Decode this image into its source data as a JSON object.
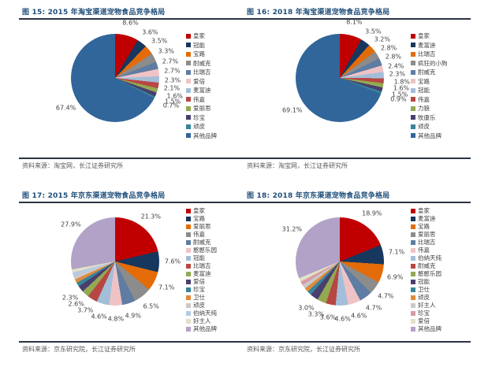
{
  "page": {
    "background": "#ffffff",
    "accent_title_color": "#1F4E79",
    "rule_color": "#2A3442"
  },
  "chart_data": [
    {
      "type": "pie",
      "title": "图 15: 2015 年淘宝渠道宠物食品竞争格局",
      "source": "资料来源：淘宝网，长江证券研究所",
      "legend_position": "right",
      "slices": [
        {
          "label": "皇家",
          "value": 8.6,
          "color": "#C00000",
          "label_visible": true
        },
        {
          "label": "冠能",
          "value": 3.6,
          "color": "#17375E",
          "label_visible": true
        },
        {
          "label": "宝路",
          "value": 3.5,
          "color": "#E36C09",
          "label_visible": true
        },
        {
          "label": "耐威克",
          "value": 3.3,
          "color": "#8C8C8C",
          "label_visible": true
        },
        {
          "label": "比瑞吉",
          "value": 2.7,
          "color": "#5F7DA3",
          "label_visible": true
        },
        {
          "label": "爱倍",
          "value": 2.7,
          "color": "#EFC3C6",
          "label_visible": true
        },
        {
          "label": "麦富迪",
          "value": 2.3,
          "color": "#A3BED9",
          "label_visible": true
        },
        {
          "label": "伟嘉",
          "value": 2.1,
          "color": "#B84743",
          "label_visible": true
        },
        {
          "label": "爱丽思",
          "value": 1.6,
          "color": "#93A952",
          "label_visible": true
        },
        {
          "label": "珍宝",
          "value": 1.5,
          "color": "#4A3E6F",
          "label_visible": true
        },
        {
          "label": "顽皮",
          "value": 0.7,
          "color": "#35859B",
          "label_visible": true
        },
        {
          "label": "其他品牌",
          "value": 67.4,
          "color": "#31669B",
          "label_visible": true
        }
      ]
    },
    {
      "type": "pie",
      "title": "图 16: 2018 年淘宝渠道宠物食品竞争格局",
      "source": "资料来源：淘宝网，长江证券研究所",
      "legend_position": "right",
      "slices": [
        {
          "label": "皇家",
          "value": 8.1,
          "color": "#C00000",
          "label_visible": true
        },
        {
          "label": "麦富迪",
          "value": 3.5,
          "color": "#17375E",
          "label_visible": true
        },
        {
          "label": "比瑞吉",
          "value": 3.2,
          "color": "#E36C09",
          "label_visible": true
        },
        {
          "label": "疯狂的小狗",
          "value": 2.8,
          "color": "#8C8C8C",
          "label_visible": true
        },
        {
          "label": "耐威克",
          "value": 2.8,
          "color": "#5F7DA3",
          "label_visible": true
        },
        {
          "label": "宝路",
          "value": 2.4,
          "color": "#EFC3C6",
          "label_visible": true
        },
        {
          "label": "冠能",
          "value": 2.3,
          "color": "#A3BED9",
          "label_visible": true
        },
        {
          "label": "伟嘉",
          "value": 1.8,
          "color": "#B84743",
          "label_visible": true
        },
        {
          "label": "力狼",
          "value": 1.6,
          "color": "#93A952",
          "label_visible": true
        },
        {
          "label": "牧康乐",
          "value": 1.5,
          "color": "#4A3E6F",
          "label_visible": true
        },
        {
          "label": "顽皮",
          "value": 0.9,
          "color": "#35859B",
          "label_visible": true
        },
        {
          "label": "其他品牌",
          "value": 69.1,
          "color": "#31669B",
          "label_visible": true
        }
      ]
    },
    {
      "type": "pie",
      "title": "图 17: 2015 年京东渠道宠物食品竞争格局",
      "source": "资料来源：京东研究院，长江证券研究所",
      "legend_position": "right",
      "slices": [
        {
          "label": "皇家",
          "value": 21.3,
          "color": "#C00000",
          "label_visible": true
        },
        {
          "label": "宝路",
          "value": 7.6,
          "color": "#17375E",
          "label_visible": true
        },
        {
          "label": "爱丽思",
          "value": 7.1,
          "color": "#E36C09",
          "label_visible": true
        },
        {
          "label": "伟嘉",
          "value": 6.5,
          "color": "#8C8C8C",
          "label_visible": true
        },
        {
          "label": "耐威克",
          "value": 4.9,
          "color": "#5F7DA3",
          "label_visible": true
        },
        {
          "label": "憨憨乐园",
          "value": 4.8,
          "color": "#EFC3C6",
          "label_visible": true
        },
        {
          "label": "冠能",
          "value": 4.6,
          "color": "#A3BED9",
          "label_visible": true
        },
        {
          "label": "比瑞吉",
          "value": 3.7,
          "color": "#B84743",
          "label_visible": true
        },
        {
          "label": "麦富迪",
          "value": 2.6,
          "color": "#93A952",
          "label_visible": true
        },
        {
          "label": "爱倍",
          "value": 2.3,
          "color": "#4A3E6F",
          "label_visible": true
        },
        {
          "label": "珍宝",
          "value": 1.5,
          "color": "#35859B",
          "label_visible": false
        },
        {
          "label": "卫仕",
          "value": 1.4,
          "color": "#E08A3C",
          "label_visible": false
        },
        {
          "label": "顽皮",
          "value": 1.3,
          "color": "#C9C9C9",
          "label_visible": false
        },
        {
          "label": "伯纳天纯",
          "value": 1.3,
          "color": "#B5CBE2",
          "label_visible": false
        },
        {
          "label": "好主人",
          "value": 1.2,
          "color": "#E3E0C8",
          "label_visible": false
        },
        {
          "label": "其他品牌",
          "value": 27.9,
          "color": "#B3A2C7",
          "label_visible": true
        }
      ]
    },
    {
      "type": "pie",
      "title": "图 18: 2018 年京东渠道宠物食品竞争格局",
      "source": "资料来源：京东研究院，长江证券研究所",
      "legend_position": "right",
      "slices": [
        {
          "label": "皇家",
          "value": 18.9,
          "color": "#C00000",
          "label_visible": true
        },
        {
          "label": "麦富迪",
          "value": 7.1,
          "color": "#17375E",
          "label_visible": true
        },
        {
          "label": "宝路",
          "value": 6.9,
          "color": "#E36C09",
          "label_visible": true
        },
        {
          "label": "爱丽思",
          "value": 4.7,
          "color": "#8C8C8C",
          "label_visible": true
        },
        {
          "label": "比瑞吉",
          "value": 4.7,
          "color": "#5F7DA3",
          "label_visible": true
        },
        {
          "label": "伟嘉",
          "value": 4.6,
          "color": "#EFC3C6",
          "label_visible": true
        },
        {
          "label": "伯纳天纯",
          "value": 4.6,
          "color": "#A3BED9",
          "label_visible": true
        },
        {
          "label": "耐威克",
          "value": 3.6,
          "color": "#B84743",
          "label_visible": true
        },
        {
          "label": "憨憨乐园",
          "value": 3.3,
          "color": "#93A952",
          "label_visible": true
        },
        {
          "label": "冠能",
          "value": 3.0,
          "color": "#4A3E6F",
          "label_visible": true
        },
        {
          "label": "卫仕",
          "value": 1.6,
          "color": "#35859B",
          "label_visible": false
        },
        {
          "label": "顽皮",
          "value": 1.5,
          "color": "#E08A3C",
          "label_visible": false
        },
        {
          "label": "好主人",
          "value": 1.5,
          "color": "#C9C9C9",
          "label_visible": false
        },
        {
          "label": "珍宝",
          "value": 1.4,
          "color": "#D79BA4",
          "label_visible": false
        },
        {
          "label": "爱倍",
          "value": 1.4,
          "color": "#E3E0C8",
          "label_visible": false
        },
        {
          "label": "其他品牌",
          "value": 31.2,
          "color": "#B3A2C7",
          "label_visible": true
        }
      ]
    }
  ]
}
